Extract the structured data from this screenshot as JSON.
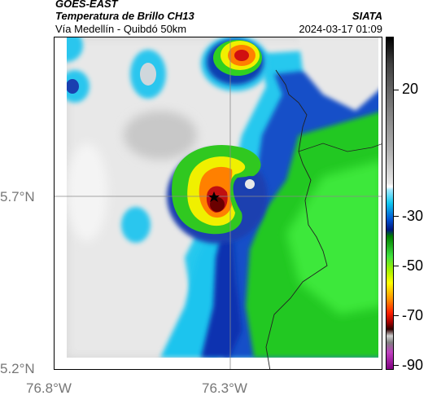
{
  "header": {
    "title": "GOES-EAST",
    "subtitle": "Temperatura de Brillo CH13",
    "organization": "SIATA",
    "area": "Vía Medellín - Quibdó 50km",
    "timestamp": "2024-03-17 01:09"
  },
  "map": {
    "lat_labels": [
      "5.7°N",
      "5.2°N"
    ],
    "lon_labels": [
      "76.8°W",
      "76.3°W"
    ],
    "marker_icon": "star-icon"
  },
  "colorbar": {
    "tick_labels": [
      "20",
      "-30",
      "-50",
      "-70",
      "-90"
    ],
    "palette": [
      "#000000",
      "#808080",
      "#ffffff",
      "#00e0ff",
      "#0020a0",
      "#00c000",
      "#ffff00",
      "#ff6000",
      "#800000",
      "#c000c0"
    ]
  }
}
